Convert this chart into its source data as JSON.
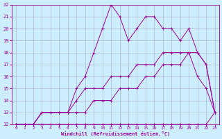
{
  "xlabel": "Windchill (Refroidissement éolien,°C)",
  "bg_color": "#cceeff",
  "line_color": "#990099",
  "grid_color": "#aaaacc",
  "xlim": [
    -0.5,
    23.5
  ],
  "ylim": [
    12,
    22
  ],
  "xticks": [
    0,
    1,
    2,
    3,
    4,
    5,
    6,
    7,
    8,
    9,
    10,
    11,
    12,
    13,
    14,
    15,
    16,
    17,
    18,
    19,
    20,
    21,
    22,
    23
  ],
  "yticks": [
    12,
    13,
    14,
    15,
    16,
    17,
    18,
    19,
    20,
    21,
    22
  ],
  "series": [
    {
      "x": [
        0,
        1,
        2,
        3,
        4,
        5,
        6,
        7,
        8,
        9,
        10,
        11,
        12,
        13,
        14,
        15,
        16,
        17,
        18,
        19,
        20,
        21,
        22,
        23
      ],
      "y": [
        12,
        12,
        12,
        12,
        12,
        12,
        12,
        12,
        12,
        12,
        12,
        12,
        12,
        12,
        12,
        12,
        12,
        12,
        12,
        12,
        12,
        12,
        12,
        13
      ]
    },
    {
      "x": [
        0,
        1,
        2,
        3,
        4,
        5,
        6,
        7,
        8,
        9,
        10,
        11,
        12,
        13,
        14,
        15,
        16,
        17,
        18,
        19,
        20,
        21,
        22,
        23
      ],
      "y": [
        12,
        12,
        12,
        13,
        13,
        13,
        13,
        13,
        13,
        14,
        14,
        14,
        15,
        15,
        15,
        16,
        16,
        17,
        17,
        17,
        18,
        18,
        17,
        13
      ]
    },
    {
      "x": [
        0,
        1,
        2,
        3,
        4,
        5,
        6,
        7,
        8,
        9,
        10,
        11,
        12,
        13,
        14,
        15,
        16,
        17,
        18,
        19,
        20,
        21,
        22,
        23
      ],
      "y": [
        12,
        12,
        12,
        13,
        13,
        13,
        13,
        14,
        15,
        15,
        15,
        16,
        16,
        16,
        17,
        17,
        17,
        18,
        18,
        18,
        18,
        16,
        15,
        13
      ]
    },
    {
      "x": [
        0,
        1,
        2,
        3,
        4,
        5,
        6,
        7,
        8,
        9,
        10,
        11,
        12,
        13,
        14,
        15,
        16,
        17,
        18,
        19,
        20,
        21,
        22,
        23
      ],
      "y": [
        12,
        12,
        12,
        13,
        13,
        13,
        13,
        15,
        16,
        18,
        20,
        22,
        21,
        19,
        20,
        21,
        21,
        20,
        20,
        19,
        20,
        18,
        17,
        13
      ]
    }
  ]
}
